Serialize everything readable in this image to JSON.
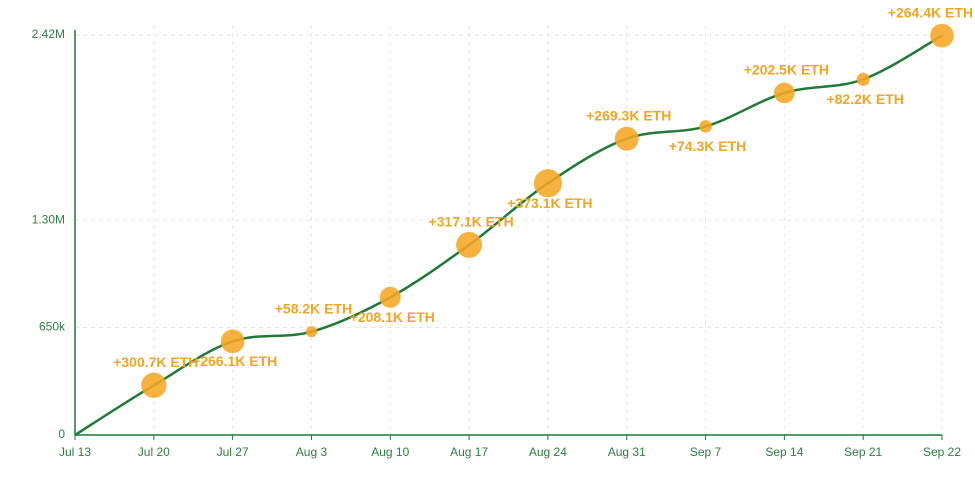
{
  "chart_data": {
    "type": "line",
    "categories": [
      "Jul 13",
      "Jul 20",
      "Jul 27",
      "Aug 3",
      "Aug 10",
      "Aug 17",
      "Aug 24",
      "Aug 31",
      "Sep 7",
      "Sep 14",
      "Sep 21",
      "Sep 22"
    ],
    "values": [
      0,
      300700,
      566800,
      625000,
      833100,
      1150200,
      1523300,
      1792600,
      1866900,
      2069400,
      2151600,
      2416000
    ],
    "sizes": [
      null,
      300700,
      266100,
      58200,
      208100,
      317100,
      373100,
      269300,
      74300,
      202500,
      82200,
      264400
    ],
    "size_labels": [
      null,
      "+300.7K ETH",
      "+266.1K ETH",
      "+58.2K ETH",
      "+208.1K ETH",
      "+317.1K ETH",
      "+373.1K ETH",
      "+269.3K ETH",
      "+74.3K ETH",
      "+202.5K ETH",
      "+82.2K ETH",
      "+264.4K ETH"
    ],
    "color": "#1f7a35",
    "bubble_color": "#f5a623",
    "ylim": [
      0,
      2420000
    ],
    "yticks": [
      0,
      {
        "value": 650000,
        "label": "650k"
      },
      {
        "value": 1300000,
        "label": "1.30M"
      },
      {
        "value": 2420000,
        "label": "2.42M"
      }
    ],
    "grid": true
  }
}
